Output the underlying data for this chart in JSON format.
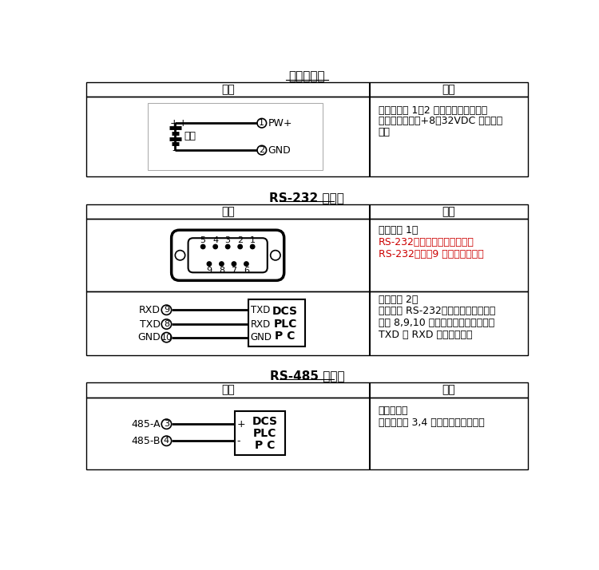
{
  "title1": "电源接线图",
  "title2": "RS-232 接线图",
  "title3": "RS-485 接线图",
  "col1_header": "接线",
  "col2_header": "说明",
  "power_desc_lines": [
    "按左图使用 1，2 脚的螺丝端子连接电",
    "源。工作电源为+8～32VDC 宽供电范",
    "围。"
  ],
  "rs232_desc1_title": "接线方法 1：",
  "rs232_desc1_line1": "RS-232接口插上与设备相连的",
  "rs232_desc1_line2": "RS-232插口（9 针公口）即可。",
  "rs232_desc2_title": "接线方法 2：",
  "rs232_desc2_line1": "若你没有 RS-232插头，也可以按左图",
  "rs232_desc2_line2": "使用 8,9,10 脚的螺丝端子连接。注意",
  "rs232_desc2_line3": "TXD 和 RXD 要交叉连接。",
  "rs485_desc_title": "接线方法：",
  "rs485_desc_line1": "按左图使用 3,4 脚的螺丝端子连接。",
  "bg_color": "#ffffff",
  "text_color": "#000000",
  "red_color": "#cc0000",
  "border_color": "#000000"
}
